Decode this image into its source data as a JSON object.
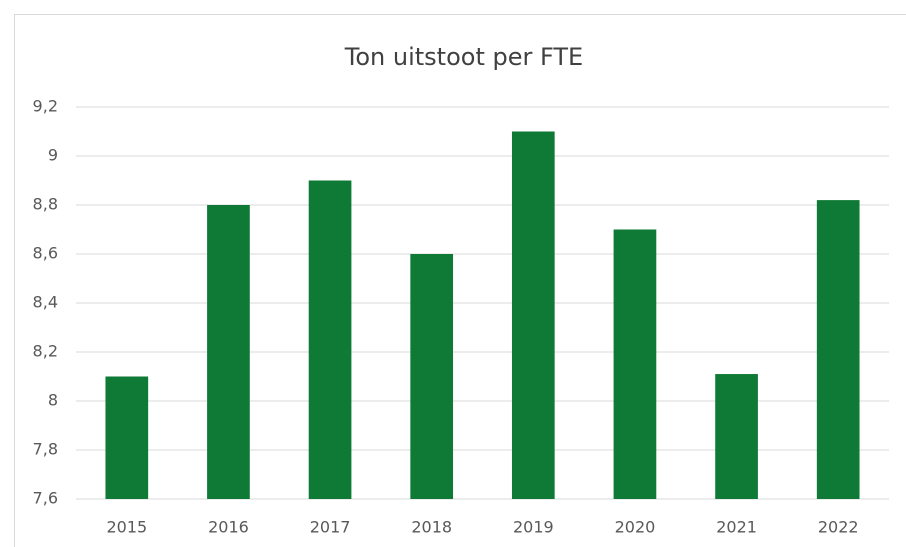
{
  "chart_data": {
    "type": "bar",
    "title": "Ton uitstoot per FTE",
    "categories": [
      "2015",
      "2016",
      "2017",
      "2018",
      "2019",
      "2020",
      "2021",
      "2022"
    ],
    "values": [
      8.1,
      8.8,
      8.9,
      8.6,
      9.1,
      8.7,
      8.11,
      8.82
    ],
    "color": "#0e7a35",
    "ylim": [
      7.6,
      9.2
    ],
    "yticks": [
      {
        "value": 7.6,
        "label": "7,6"
      },
      {
        "value": 7.8,
        "label": "7,8"
      },
      8,
      {
        "value": 8.2,
        "label": "8,2"
      },
      {
        "value": 8.4,
        "label": "8,4"
      },
      {
        "value": 8.6,
        "label": "8,6"
      },
      {
        "value": 8.8,
        "label": "8,8"
      },
      9,
      {
        "value": 9.2,
        "label": "9,2"
      }
    ],
    "grid": true
  }
}
